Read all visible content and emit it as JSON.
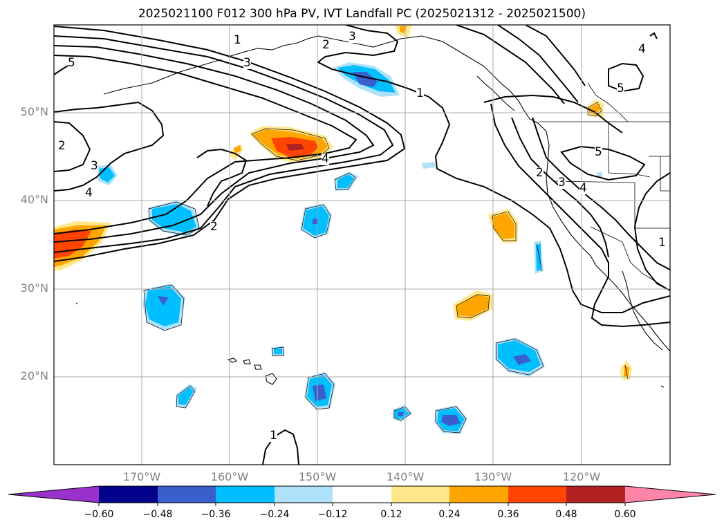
{
  "title": "2025021100 F012 300 hPa PV, IVT Landfall PC (2025021312 - 2025021500)",
  "lat_labels": [
    "50°N",
    "40°N",
    "30°N",
    "20°N"
  ],
  "lon_labels": [
    "170°W",
    "160°W",
    "150°W",
    "140°W",
    "130°W",
    "120°W"
  ],
  "contour_labels": [
    "1",
    "1",
    "1",
    "1",
    "2",
    "2",
    "2",
    "2",
    "3",
    "3",
    "3",
    "3",
    "4",
    "4",
    "4",
    "4",
    "5",
    "5",
    "5"
  ],
  "colorbar": {
    "ticks": [
      "−0.60",
      "−0.48",
      "−0.36",
      "−0.24",
      "−0.12",
      "0.12",
      "0.24",
      "0.36",
      "0.48",
      "0.60"
    ],
    "colors": [
      "#9932cc",
      "#00008b",
      "#3a5fcd",
      "#00bfff",
      "#afe1fa",
      "#ffffff",
      "#ffe88c",
      "#ffa500",
      "#ff4500",
      "#b22222",
      "#ff85a8"
    ]
  }
}
